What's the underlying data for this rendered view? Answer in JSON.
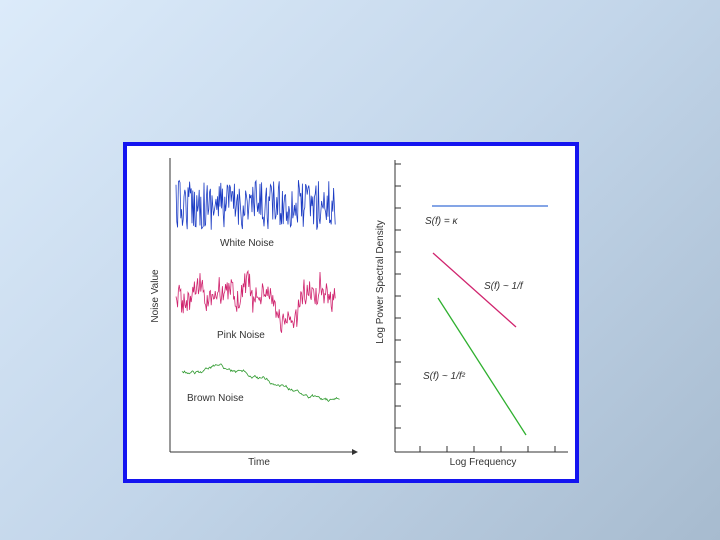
{
  "left_panel": {
    "y_label": "Noise Value",
    "x_label": "Time",
    "traces": [
      {
        "label": "White Noise",
        "color": "#1c3cc4"
      },
      {
        "label": "Pink Noise",
        "color": "#d0246e"
      },
      {
        "label": "Brown Noise",
        "color": "#2f9a2f"
      }
    ]
  },
  "right_panel": {
    "y_label": "Log Power Spectral Density",
    "x_label": "Log Frequency",
    "lines": [
      {
        "label": "S(f) = κ",
        "color": "#3a6fd6"
      },
      {
        "label": "S(f) ~ 1/f",
        "color": "#d0246e"
      },
      {
        "label": "S(f) ~ 1/f²",
        "color": "#2fb02f"
      }
    ]
  }
}
